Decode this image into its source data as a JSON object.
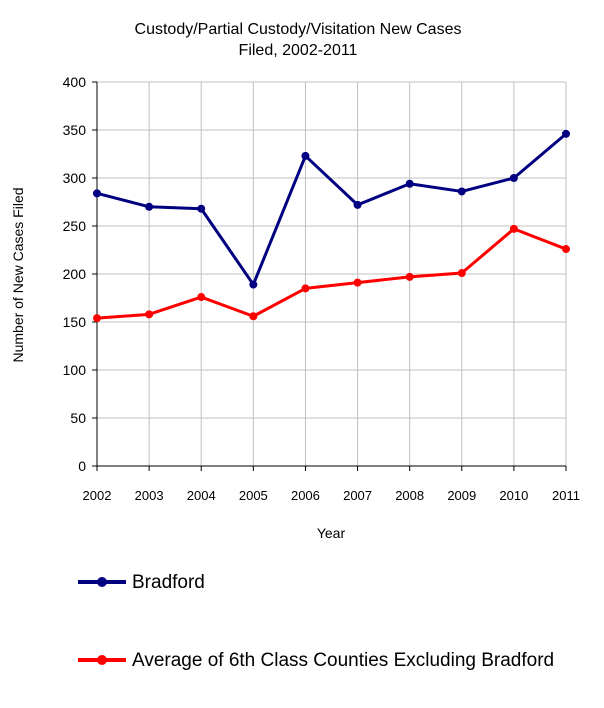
{
  "chart_data": {
    "type": "line",
    "title": [
      "Custody/Partial Custody/Visitation New  Cases",
      "Filed, 2002-2011"
    ],
    "xlabel": "Year",
    "ylabel": "Number of New Cases Filed",
    "categories": [
      "2002",
      "2003",
      "2004",
      "2005",
      "2006",
      "2007",
      "2008",
      "2009",
      "2010",
      "2011"
    ],
    "ylim": [
      0,
      400
    ],
    "yticks": [
      0,
      50,
      100,
      150,
      200,
      250,
      300,
      350,
      400
    ],
    "grid": true,
    "legend_position": "bottom",
    "series": [
      {
        "name": "Bradford",
        "color": "#000080",
        "values": [
          284,
          270,
          268,
          189,
          323,
          272,
          294,
          286,
          300,
          346
        ]
      },
      {
        "name": "Average of 6th Class Counties Excluding Bradford",
        "color": "#ff0000",
        "values": [
          154,
          158,
          176,
          156,
          185,
          191,
          197,
          201,
          247,
          226
        ]
      }
    ]
  }
}
